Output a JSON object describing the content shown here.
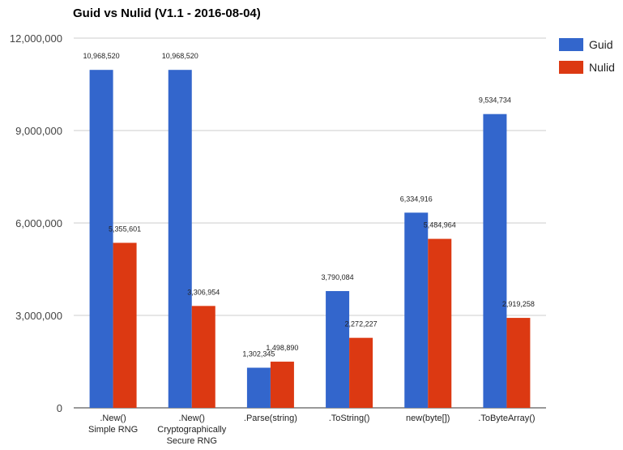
{
  "chart_data": {
    "type": "bar",
    "title": "Guid vs Nulid (V1.1 - 2016-08-04)",
    "categories": [
      [
        ".New()",
        "Simple RNG"
      ],
      [
        ".New()",
        "Cryptographically",
        "Secure RNG"
      ],
      [
        ".Parse(string)"
      ],
      [
        ".ToString()"
      ],
      [
        "new(byte[])"
      ],
      [
        ".ToByteArray()"
      ]
    ],
    "series": [
      {
        "name": "Guid",
        "color": "#3366cc",
        "values": [
          10968520,
          10968520,
          1302345,
          3790084,
          6334916,
          9534734
        ],
        "labels": [
          "10,968,520",
          "10,968,520",
          "1,302,345",
          "3,790,084",
          "6,334,916",
          "9,534,734"
        ]
      },
      {
        "name": "Nulid",
        "color": "#dc3912",
        "values": [
          5355601,
          3306954,
          1498890,
          2272227,
          5484964,
          2919258
        ],
        "labels": [
          "5,355,601",
          "3,306,954",
          "1,498,890",
          "2,272,227",
          "5,484,964",
          "2,919,258"
        ]
      }
    ],
    "yticks": [
      {
        "value": 0,
        "label": "0"
      },
      {
        "value": 3000000,
        "label": "3,000,000"
      },
      {
        "value": 6000000,
        "label": "6,000,000"
      },
      {
        "value": 9000000,
        "label": "9,000,000"
      },
      {
        "value": 12000000,
        "label": "12,000,000"
      }
    ],
    "ylim": [
      0,
      12000000
    ],
    "grid": true,
    "legend": "right"
  }
}
